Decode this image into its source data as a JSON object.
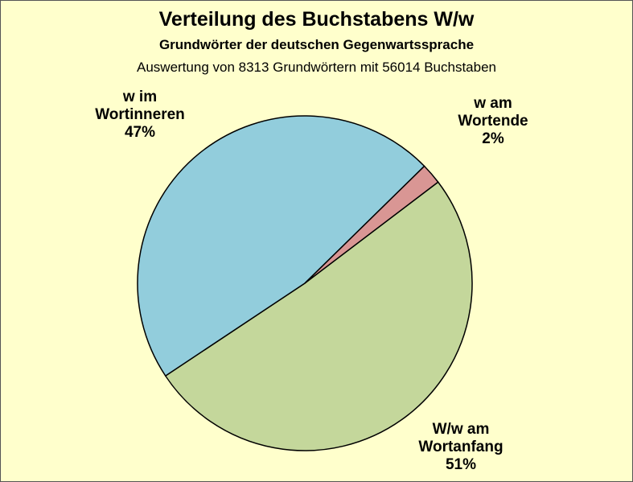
{
  "chart_data": {
    "type": "pie",
    "title": "Verteilung des Buchstabens W/w",
    "subtitle": "Grundwörter der deutschen Gegenwartssprache",
    "subtitle2": "Auswertung von 8313 Grundwörtern mit 56014 Buchstaben",
    "slices": [
      {
        "label_lines": [
          "W/w am",
          "Wortanfang",
          "51%"
        ],
        "value": 51,
        "color": "#C4D79B"
      },
      {
        "label_lines": [
          "w im",
          "Wortinneren",
          "47%"
        ],
        "value": 47,
        "color": "#92CDDC"
      },
      {
        "label_lines": [
          "w am",
          "Wortende",
          "2%"
        ],
        "value": 2,
        "color": "#D99694"
      }
    ],
    "background": "#FFFFCC"
  }
}
